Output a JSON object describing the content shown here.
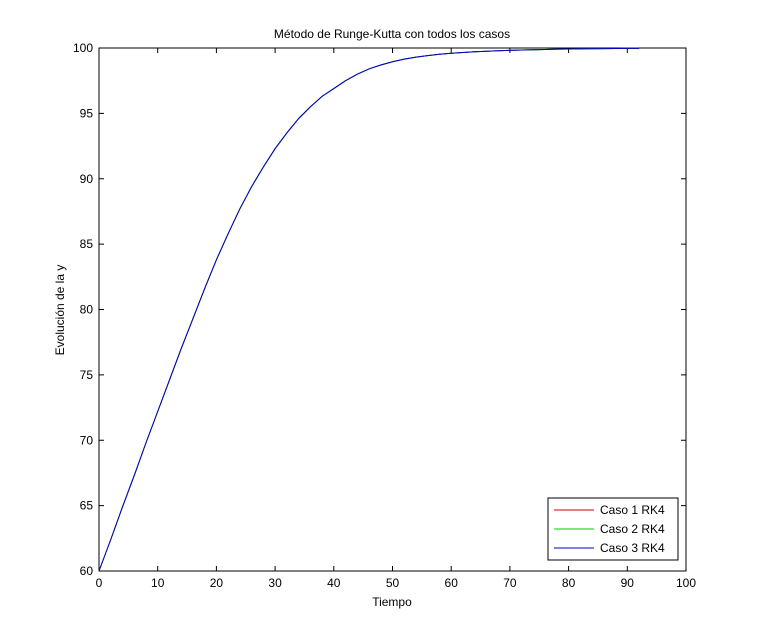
{
  "chart_data": {
    "type": "line",
    "title": "Método de Runge-Kutta con todos los casos",
    "xlabel": "Tiempo",
    "ylabel": "Evolución de la y",
    "xlim": [
      0,
      100
    ],
    "ylim": [
      60,
      100
    ],
    "xticks": [
      0,
      10,
      20,
      30,
      40,
      50,
      60,
      70,
      80,
      90,
      100
    ],
    "yticks": [
      60,
      65,
      70,
      75,
      80,
      85,
      90,
      95,
      100
    ],
    "grid": false,
    "legend_position": "bottom-right",
    "x": [
      0,
      2,
      4,
      6,
      8,
      10,
      12,
      14,
      16,
      18,
      20,
      22,
      24,
      26,
      28,
      30,
      32,
      34,
      36,
      38,
      40,
      42,
      44,
      46,
      48,
      50,
      52,
      54,
      56,
      58,
      60,
      62,
      64,
      66,
      68,
      70,
      72,
      74,
      76,
      78,
      80,
      82,
      84,
      86,
      88,
      90,
      92
    ],
    "series": [
      {
        "name": "Caso 1 RK4",
        "color": "#cc0000",
        "values": [
          60.0,
          62.4,
          64.9,
          67.3,
          69.8,
          72.2,
          74.6,
          77.0,
          79.3,
          81.6,
          83.8,
          85.8,
          87.7,
          89.4,
          90.9,
          92.3,
          93.5,
          94.6,
          95.5,
          96.3,
          96.9,
          97.5,
          98.0,
          98.4,
          98.7,
          98.95,
          99.15,
          99.3,
          99.42,
          99.52,
          99.6,
          99.66,
          99.71,
          99.75,
          99.79,
          99.82,
          99.85,
          99.87,
          99.89,
          99.91,
          99.92,
          99.93,
          99.94,
          99.95,
          99.96,
          99.97,
          99.97
        ]
      },
      {
        "name": "Caso 2 RK4",
        "color": "#00cc00",
        "values": [
          60.0,
          62.4,
          64.9,
          67.3,
          69.8,
          72.2,
          74.6,
          77.0,
          79.3,
          81.6,
          83.8,
          85.8,
          87.7,
          89.4,
          90.9,
          92.3,
          93.5,
          94.6,
          95.5,
          96.3,
          96.9,
          97.5,
          98.0,
          98.4,
          98.7,
          98.95,
          99.15,
          99.3,
          99.42,
          99.52,
          99.6,
          99.66,
          99.71,
          99.75,
          99.79,
          99.82,
          99.85,
          99.87,
          99.89,
          99.91,
          99.92,
          99.93,
          99.94,
          99.95,
          99.96,
          99.97,
          99.97
        ]
      },
      {
        "name": "Caso 3 RK4",
        "color": "#0000cc",
        "values": [
          60.0,
          62.4,
          64.9,
          67.3,
          69.8,
          72.2,
          74.6,
          77.0,
          79.3,
          81.6,
          83.8,
          85.8,
          87.7,
          89.4,
          90.9,
          92.3,
          93.5,
          94.6,
          95.5,
          96.3,
          96.9,
          97.5,
          98.0,
          98.4,
          98.7,
          98.95,
          99.15,
          99.3,
          99.42,
          99.52,
          99.6,
          99.66,
          99.71,
          99.75,
          99.79,
          99.82,
          99.85,
          99.87,
          99.89,
          99.91,
          99.92,
          99.93,
          99.94,
          99.95,
          99.96,
          99.97,
          99.97
        ]
      }
    ]
  }
}
